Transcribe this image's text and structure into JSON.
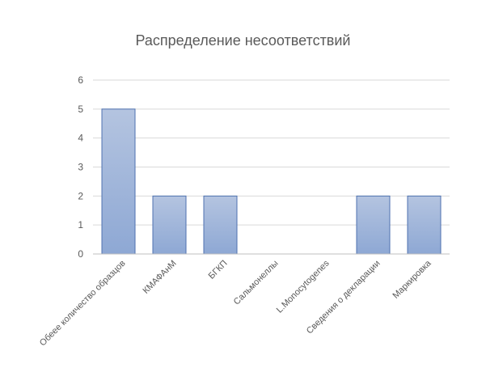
{
  "chart_data": {
    "type": "bar",
    "title": "Распределение несоответствий",
    "xlabel": "",
    "ylabel": "",
    "categories": [
      "Обеее количество образцов",
      "КМАФАнМ",
      "БГКП",
      "Сальмонеллы",
      "L.Monocytogenes",
      "Сведения о декларации",
      "Маркировка"
    ],
    "values": [
      5,
      2,
      2,
      0,
      0,
      2,
      2
    ],
    "ylim": [
      0,
      6
    ],
    "yticks": [
      0,
      1,
      2,
      3,
      4,
      5,
      6
    ],
    "grid": true,
    "legend": "none",
    "colors": {
      "bar_top": "#b4c4e0",
      "bar_bottom": "#8ea8d4",
      "bar_stroke": "#4f72b0",
      "grid": "#d9d9d9",
      "axis": "#bfbfbf",
      "text": "#595959"
    }
  }
}
